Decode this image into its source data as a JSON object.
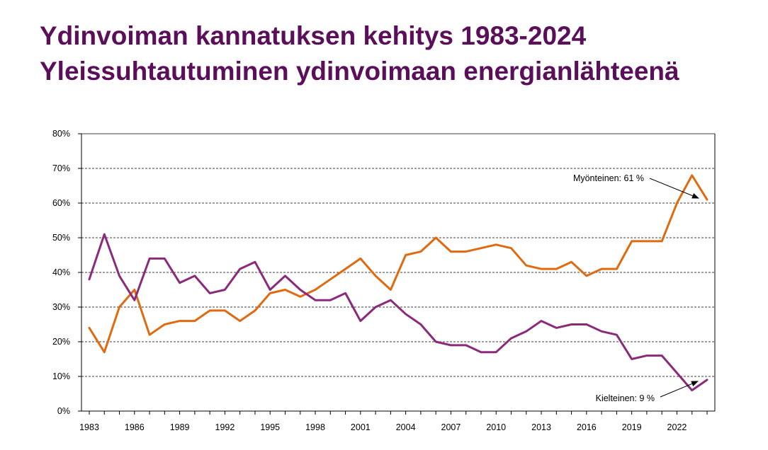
{
  "title": {
    "line1": "Ydinvoiman kannatuksen kehitys 1983-2024",
    "line2": "Yleissuhtautuminen ydinvoimaan energianlähteenä"
  },
  "colors": {
    "title": "#5b0f5b",
    "positive": "#e06a10",
    "negative": "#8b2a7b"
  },
  "chart_data": {
    "type": "line",
    "x": [
      1983,
      1984,
      1985,
      1986,
      1987,
      1988,
      1989,
      1990,
      1991,
      1992,
      1993,
      1994,
      1995,
      1996,
      1997,
      1998,
      1999,
      2000,
      2001,
      2002,
      2003,
      2004,
      2005,
      2006,
      2007,
      2008,
      2009,
      2010,
      2011,
      2012,
      2013,
      2014,
      2015,
      2016,
      2017,
      2018,
      2019,
      2020,
      2021,
      2022,
      2023,
      2024
    ],
    "x_ticks": [
      "1983",
      "1986",
      "1989",
      "1992",
      "1995",
      "1998",
      "2001",
      "2004",
      "2007",
      "2010",
      "2013",
      "2016",
      "2019",
      "2022"
    ],
    "y_ticks": [
      "0%",
      "10%",
      "20%",
      "30%",
      "40%",
      "50%",
      "60%",
      "70%",
      "80%"
    ],
    "ylim": [
      0,
      80
    ],
    "grid": "horizontal dashed",
    "series": [
      {
        "name": "Myönteinen",
        "color": "#e06a10",
        "values": [
          24,
          17,
          30,
          35,
          22,
          25,
          26,
          26,
          29,
          29,
          26,
          29,
          34,
          35,
          33,
          35,
          38,
          41,
          44,
          39,
          35,
          45,
          46,
          50,
          46,
          46,
          47,
          48,
          47,
          42,
          41,
          41,
          43,
          39,
          41,
          41,
          49,
          49,
          49,
          60,
          68,
          61
        ]
      },
      {
        "name": "Kielteinen",
        "color": "#8b2a7b",
        "values": [
          38,
          51,
          39,
          32,
          44,
          44,
          37,
          39,
          34,
          35,
          41,
          43,
          35,
          39,
          35,
          32,
          32,
          34,
          26,
          30,
          32,
          28,
          25,
          20,
          19,
          19,
          17,
          17,
          21,
          23,
          26,
          24,
          25,
          25,
          23,
          22,
          15,
          16,
          16,
          11,
          6,
          9
        ]
      }
    ],
    "annotations": [
      {
        "text": "Myönteinen:  61 %",
        "series": "Myönteinen",
        "x": 2024,
        "y": 61
      },
      {
        "text": "Kielteinen: 9 %",
        "series": "Kielteinen",
        "x": 2024,
        "y": 9
      }
    ]
  }
}
